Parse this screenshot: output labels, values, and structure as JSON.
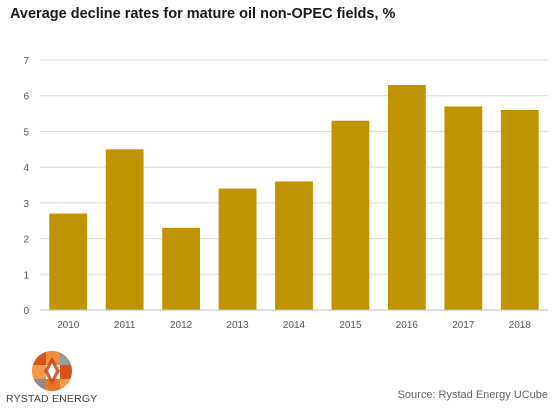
{
  "title": "Average decline rates for mature oil non-OPEC fields, %",
  "source": "Source: Rystad Energy UCube",
  "brand": {
    "name": "RYSTAD ENERGY"
  },
  "colors": {
    "bar": "#C09300",
    "grid": "#dcdcdc",
    "axis_text": "#555555"
  },
  "chart_data": {
    "type": "bar",
    "title": "Average decline rates for mature oil non-OPEC fields, %",
    "xlabel": "",
    "ylabel": "",
    "categories": [
      "2010",
      "2011",
      "2012",
      "2013",
      "2014",
      "2015",
      "2016",
      "2017",
      "2018"
    ],
    "values": [
      2.7,
      4.5,
      2.3,
      3.4,
      3.6,
      5.3,
      6.3,
      5.7,
      5.6
    ],
    "ylim": [
      0,
      7
    ],
    "yticks": [
      "0",
      "1",
      "2",
      "3",
      "4",
      "5",
      "6",
      "7"
    ],
    "grid": true,
    "legend": "none"
  }
}
